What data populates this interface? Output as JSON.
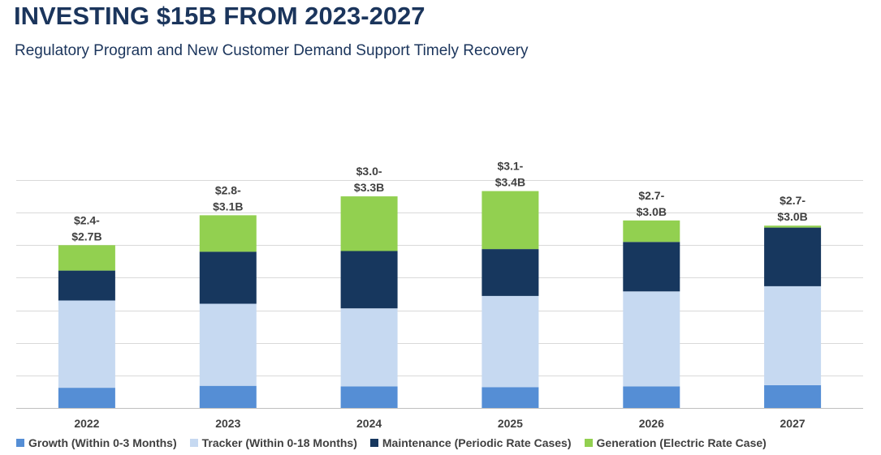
{
  "header": {
    "title": "INVESTING $15B FROM 2023-2027",
    "subtitle": "Regulatory Program and New Customer Demand Support Timely Recovery"
  },
  "chart_data": {
    "type": "bar",
    "stacked": true,
    "categories": [
      "2022",
      "2023",
      "2024",
      "2025",
      "2026",
      "2027"
    ],
    "ylim": [
      0,
      3.5
    ],
    "grid": true,
    "legend_position": "bottom",
    "series": [
      {
        "name": "Growth (Within 0-3 Months)",
        "color": "#558ed5",
        "values": [
          0.31,
          0.34,
          0.33,
          0.32,
          0.33,
          0.35
        ]
      },
      {
        "name": "Tracker (Within 0-18 Months)",
        "color": "#c6d9f1",
        "values": [
          1.34,
          1.26,
          1.2,
          1.4,
          1.46,
          1.52
        ]
      },
      {
        "name": "Maintenance (Periodic Rate Cases)",
        "color": "#17375e",
        "values": [
          0.46,
          0.8,
          0.88,
          0.72,
          0.76,
          0.9
        ]
      },
      {
        "name": "Generation (Electric Rate Case)",
        "color": "#92d050",
        "values": [
          0.39,
          0.56,
          0.84,
          0.89,
          0.33,
          0.03
        ]
      }
    ],
    "data_labels": [
      [
        "$2.4-",
        "$2.7B"
      ],
      [
        "$2.8-",
        "$3.1B"
      ],
      [
        "$3.0-",
        "$3.3B"
      ],
      [
        "$3.1-",
        "$3.4B"
      ],
      [
        "$2.7-",
        "$3.0B"
      ],
      [
        "$2.7-",
        "$3.0B"
      ]
    ]
  }
}
